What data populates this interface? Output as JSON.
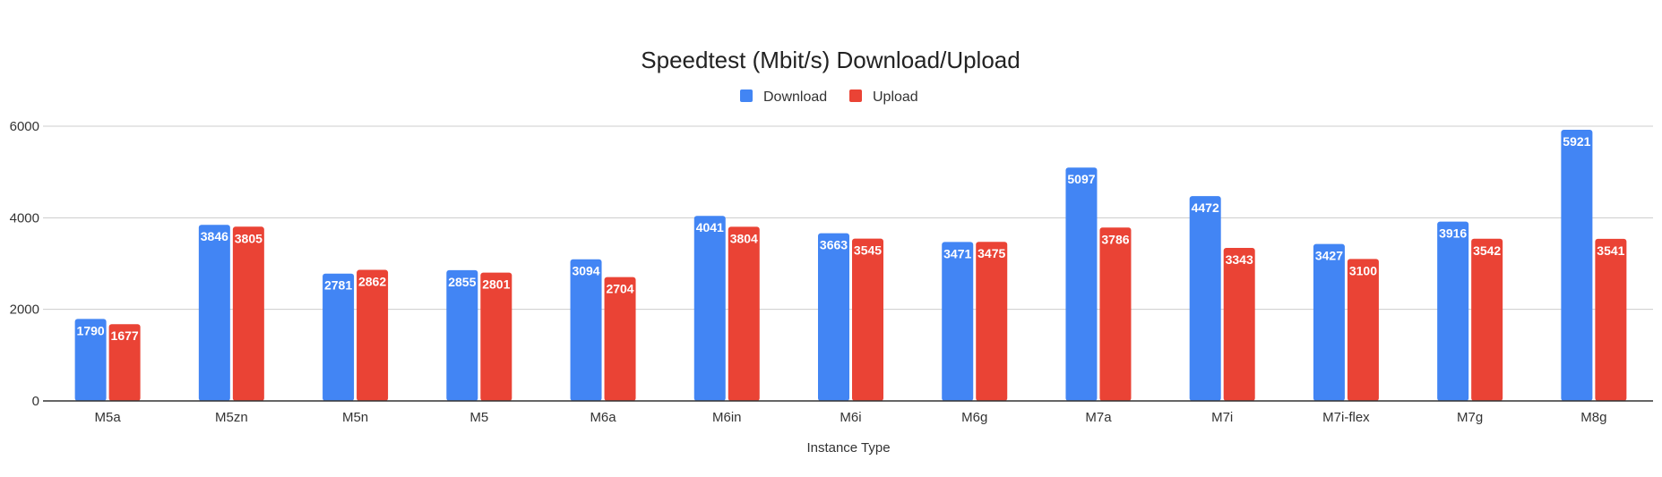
{
  "chart_data": {
    "type": "bar",
    "title": "Speedtest (Mbit/s) Download/Upload",
    "xlabel": "Instance Type",
    "ylabel": "",
    "categories": [
      "M5a",
      "M5zn",
      "M5n",
      "M5",
      "M6a",
      "M6in",
      "M6i",
      "M6g",
      "M7a",
      "M7i",
      "M7i-flex",
      "M7g",
      "M8g"
    ],
    "series": [
      {
        "name": "Download",
        "color": "#4285f4",
        "values": [
          1790,
          3846,
          2781,
          2855,
          3094,
          4041,
          3663,
          3471,
          5097,
          4472,
          3427,
          3916,
          5921
        ]
      },
      {
        "name": "Upload",
        "color": "#ea4335",
        "values": [
          1677,
          3805,
          2862,
          2801,
          2704,
          3804,
          3545,
          3475,
          3786,
          3343,
          3100,
          3542,
          3541
        ]
      }
    ],
    "ylim": [
      0,
      6000
    ],
    "yticks": [
      "0",
      "2000",
      "4000",
      "6000"
    ],
    "grid": true,
    "legend_position": "top"
  }
}
